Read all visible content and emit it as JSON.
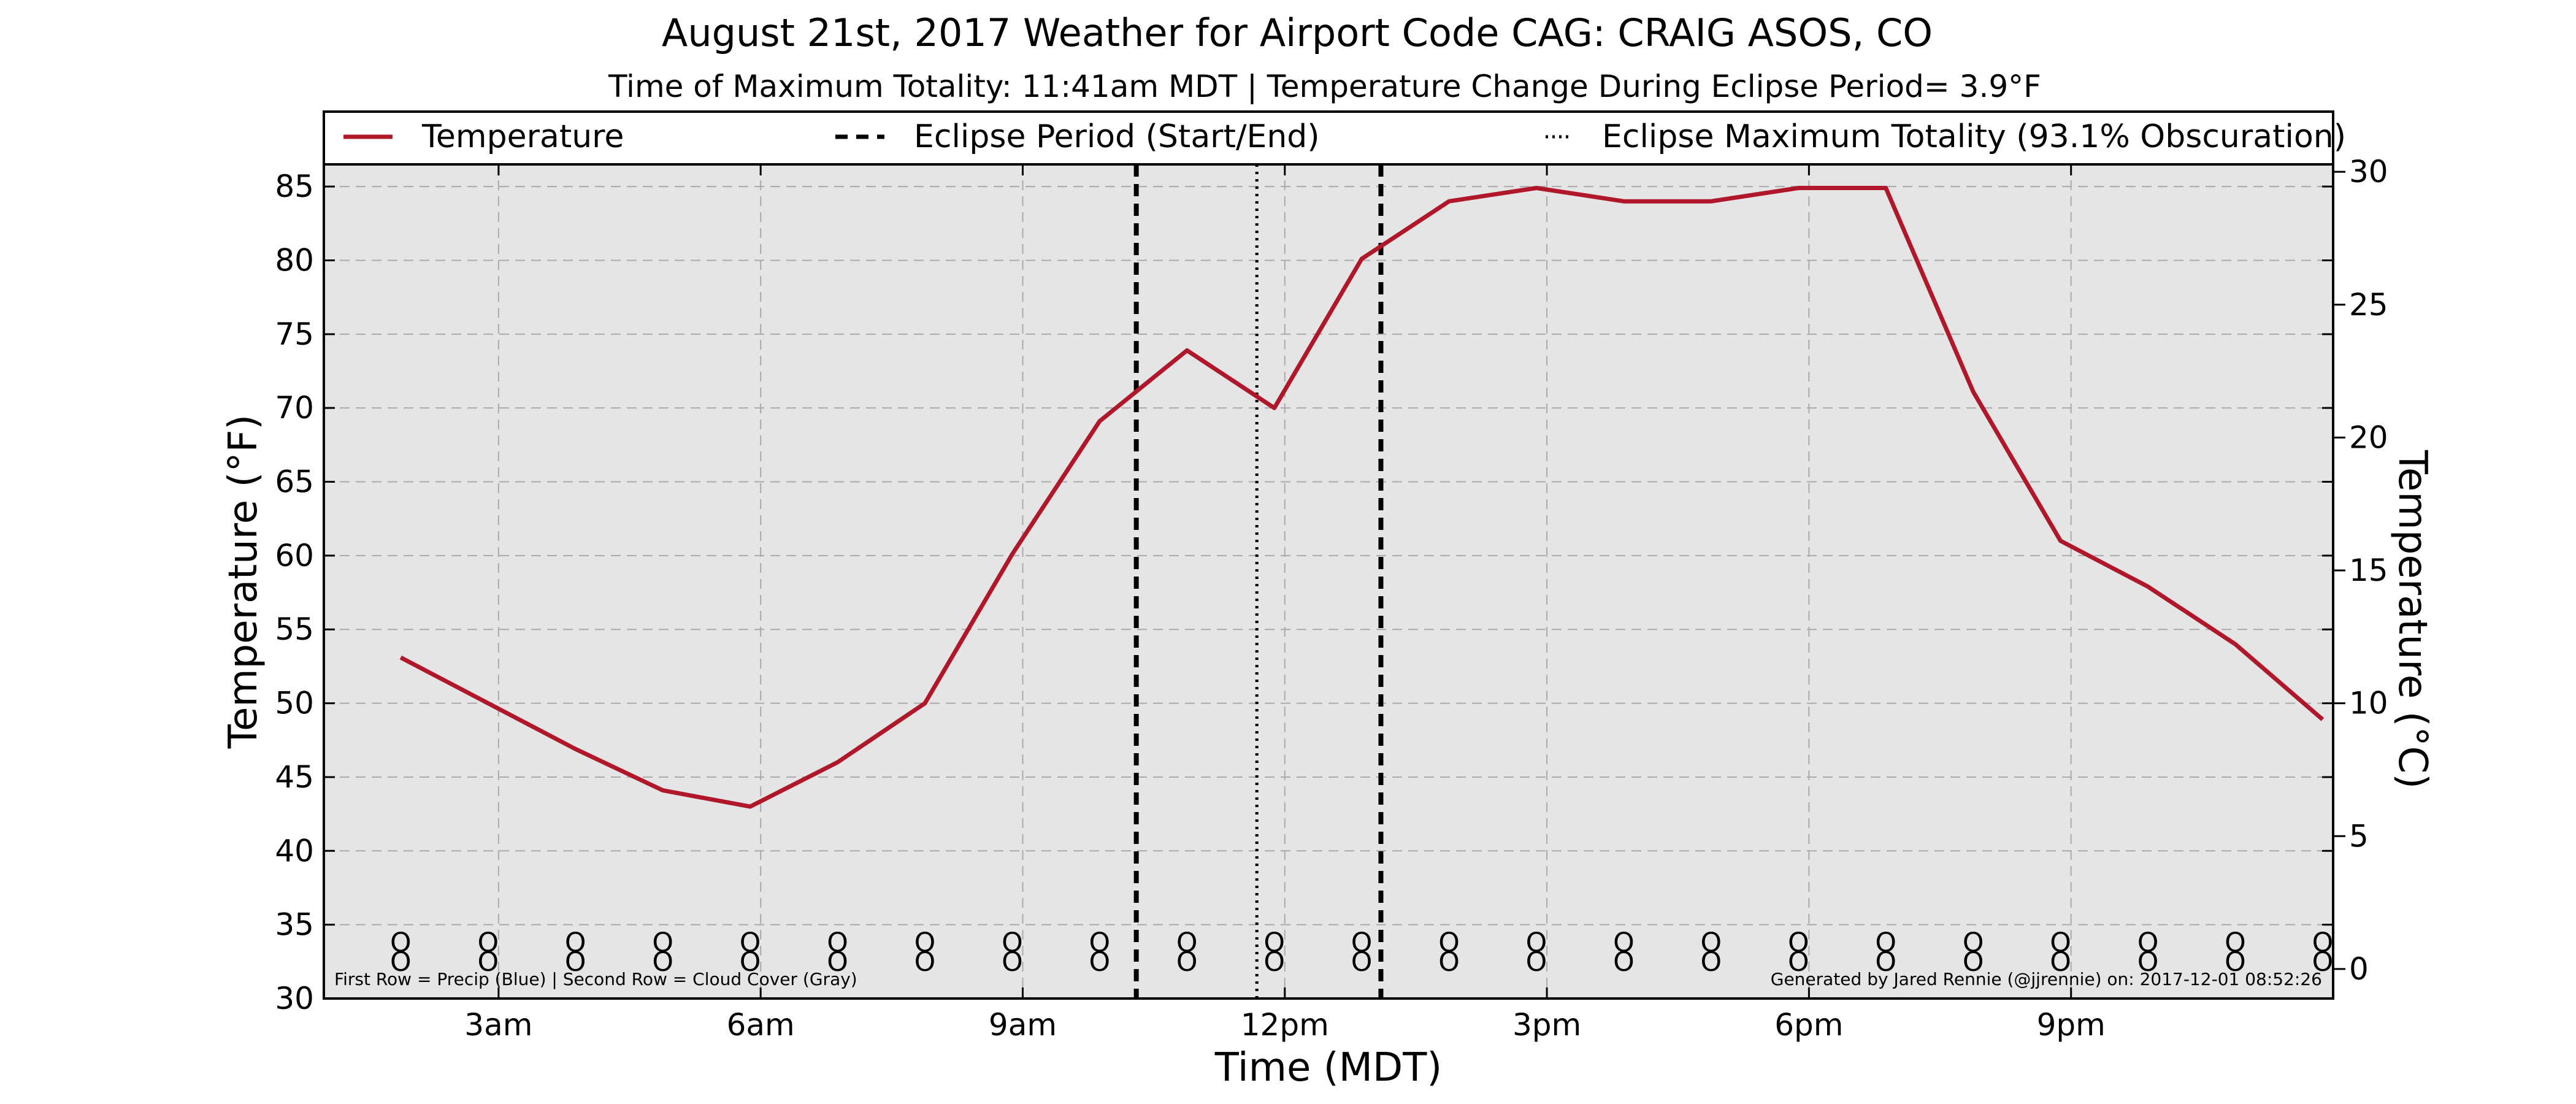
{
  "chart_data": {
    "type": "line",
    "title": "August 21st, 2017 Weather for Airport Code CAG: CRAIG ASOS, CO",
    "subtitle": "Time of Maximum Totality: 11:41am MDT | Temperature Change During Eclipse Period= 3.9°F",
    "xlabel": "Time (MDT)",
    "ylabel": "Temperature (°F)",
    "ylabel_right": "Temperature (°C)",
    "x_ticks": [
      {
        "hour": 3,
        "label": "3am"
      },
      {
        "hour": 6,
        "label": "6am"
      },
      {
        "hour": 9,
        "label": "9am"
      },
      {
        "hour": 12,
        "label": "12pm"
      },
      {
        "hour": 15,
        "label": "3pm"
      },
      {
        "hour": 18,
        "label": "6pm"
      },
      {
        "hour": 21,
        "label": "9pm"
      }
    ],
    "xlim_hours": [
      1.0,
      24.0
    ],
    "ylim": [
      30,
      86.5
    ],
    "y_ticks": [
      30,
      35,
      40,
      45,
      50,
      55,
      60,
      65,
      70,
      75,
      80,
      85
    ],
    "right_ylim_c": [
      -1.11,
      30.28
    ],
    "right_ticks_c": [
      0,
      5,
      10,
      15,
      20,
      25,
      30
    ],
    "grid": true,
    "legend_position": "top",
    "series": [
      {
        "name": "Temperature",
        "color": "#b0172b",
        "points": [
          {
            "hour": 1.88,
            "value": 53.1
          },
          {
            "hour": 2.88,
            "value": 50.0
          },
          {
            "hour": 3.88,
            "value": 46.9
          },
          {
            "hour": 4.88,
            "value": 44.1
          },
          {
            "hour": 5.88,
            "value": 43.0
          },
          {
            "hour": 6.88,
            "value": 46.0
          },
          {
            "hour": 7.88,
            "value": 50.0
          },
          {
            "hour": 8.88,
            "value": 60.1
          },
          {
            "hour": 9.88,
            "value": 69.1
          },
          {
            "hour": 10.88,
            "value": 73.9
          },
          {
            "hour": 11.88,
            "value": 70.0
          },
          {
            "hour": 12.88,
            "value": 80.1
          },
          {
            "hour": 13.88,
            "value": 84.0
          },
          {
            "hour": 14.88,
            "value": 84.9
          },
          {
            "hour": 15.88,
            "value": 84.0
          },
          {
            "hour": 16.88,
            "value": 84.0
          },
          {
            "hour": 17.88,
            "value": 84.9
          },
          {
            "hour": 18.88,
            "value": 84.9
          },
          {
            "hour": 19.88,
            "value": 71.1
          },
          {
            "hour": 20.88,
            "value": 61.0
          },
          {
            "hour": 21.88,
            "value": 57.9
          },
          {
            "hour": 22.88,
            "value": 54.0
          },
          {
            "hour": 23.88,
            "value": 48.9
          }
        ]
      }
    ],
    "eclipse_period": {
      "start_hour": 10.3,
      "end_hour": 13.1,
      "label": "Eclipse Period (Start/End)",
      "color": "#000000"
    },
    "eclipse_max": {
      "hour": 11.68,
      "label": "Eclipse Maximum Totality (93.1% Obscuration)",
      "color": "#000000"
    },
    "legend": [
      {
        "key": "temperature",
        "label": "Temperature"
      },
      {
        "key": "eclipse-period",
        "label": "Eclipse Period (Start/End)"
      },
      {
        "key": "eclipse-max",
        "label": "Eclipse Maximum Totality (93.1% Obscuration)"
      }
    ],
    "obs_symbols": {
      "row1_symbol": "O",
      "row2_symbol": "O",
      "row1_temp_f": 33.8,
      "row2_temp_f": 32.5,
      "hours": [
        1.88,
        2.88,
        3.88,
        4.88,
        5.88,
        6.88,
        7.88,
        8.88,
        9.88,
        10.88,
        11.88,
        12.88,
        13.88,
        14.88,
        15.88,
        16.88,
        17.88,
        18.88,
        19.88,
        20.88,
        21.88,
        22.88,
        23.88
      ]
    },
    "footnote_left": "First Row = Precip (Blue) | Second Row = Cloud Cover (Gray)",
    "footnote_right": "Generated by Jared Rennie (@jjrennie) on: 2017-12-01 08:52:26",
    "colors": {
      "plot_background": "#e5e5e5",
      "grid": "#aaaaaa",
      "line": "#b0172b"
    }
  }
}
